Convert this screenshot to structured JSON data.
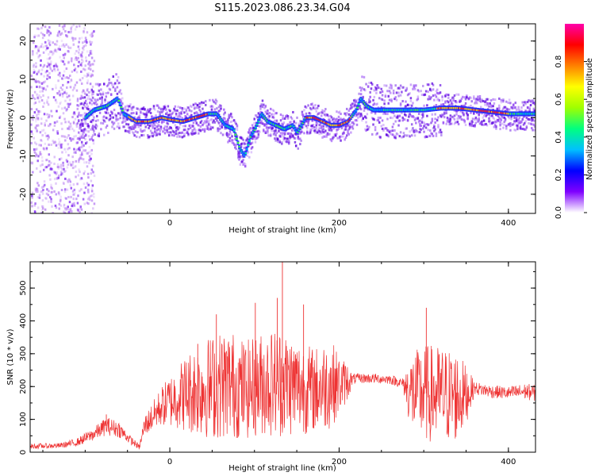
{
  "figure": {
    "title": "S115.2023.086.23.34.G04"
  },
  "colors": {
    "snr_line": "#ee3333",
    "ridge": "#ff1a1a",
    "axis": "#000000",
    "colormap": [
      "#ffffff",
      "#7f00ff",
      "#0000ff",
      "#00c0ff",
      "#00ff80",
      "#a0ff00",
      "#ffff00",
      "#ff8000",
      "#ff0000",
      "#ff00aa"
    ]
  },
  "chart_data": [
    {
      "type": "heatmap",
      "title": "S115.2023.086.23.34.G04",
      "xlabel": "Height of straight line (km)",
      "ylabel": "Frequency (Hz)",
      "xlim": [
        -165,
        432
      ],
      "ylim": [
        -25,
        24.5
      ],
      "x_ticks": [
        "0",
        "200",
        "400"
      ],
      "x_tick_values": [
        0,
        200,
        400
      ],
      "y_ticks": [
        "-20",
        "-10",
        "0",
        "10",
        "20"
      ],
      "y_tick_values": [
        -20,
        -10,
        0,
        10,
        20
      ],
      "colorbar": {
        "label": "Normalized spectral amplitude",
        "range": [
          0,
          1
        ],
        "ticks": [
          "0.0",
          "0.2",
          "0.4",
          "0.6",
          "0.8"
        ],
        "tick_values": [
          0,
          0.2,
          0.4,
          0.6,
          0.8
        ]
      },
      "ridge": {
        "x": [
          -110,
          -90,
          -75,
          -62,
          -55,
          -40,
          -25,
          -10,
          0,
          15,
          30,
          45,
          55,
          65,
          75,
          82,
          88,
          95,
          100,
          108,
          115,
          125,
          135,
          145,
          150,
          160,
          170,
          180,
          190,
          200,
          210,
          220,
          225,
          232,
          240,
          260,
          280,
          300,
          320,
          340,
          360,
          380,
          400,
          420,
          432
        ],
        "y": [
          -2,
          2,
          3,
          5,
          1,
          -1,
          -1,
          0,
          -0.5,
          -1,
          0,
          1,
          1,
          -2,
          -3,
          -8,
          -10,
          -5,
          -3,
          1,
          -1,
          -2,
          -3,
          -2,
          -4,
          0,
          0,
          -1,
          -2,
          -2,
          -1,
          2,
          5,
          3,
          2,
          2,
          2,
          2,
          2.5,
          2.5,
          2,
          1.5,
          1,
          1,
          1
        ]
      }
    },
    {
      "type": "line",
      "title": "",
      "xlabel": "Height of straight line (km)",
      "ylabel": "SNR (10 * v/v)",
      "xlim": [
        -165,
        432
      ],
      "ylim": [
        0,
        580
      ],
      "x_ticks": [
        "0",
        "200",
        "400"
      ],
      "x_tick_values": [
        0,
        200,
        400
      ],
      "y_ticks": [
        "0",
        "100",
        "200",
        "300",
        "400",
        "500"
      ],
      "y_tick_values": [
        0,
        100,
        200,
        300,
        400,
        500
      ],
      "series": [
        {
          "name": "",
          "envelope_x": [
            -165,
            -130,
            -110,
            -90,
            -75,
            -60,
            -50,
            -36,
            -30,
            -10,
            10,
            30,
            50,
            70,
            90,
            110,
            130,
            150,
            170,
            190,
            200,
            210,
            215,
            220,
            240,
            260,
            275,
            285,
            300,
            320,
            340,
            350,
            360,
            380,
            400,
            420,
            432
          ],
          "envelope_center": [
            18,
            20,
            30,
            55,
            80,
            70,
            45,
            15,
            80,
            140,
            170,
            190,
            200,
            210,
            190,
            210,
            215,
            200,
            190,
            210,
            205,
            215,
            220,
            225,
            225,
            222,
            210,
            180,
            180,
            175,
            170,
            175,
            195,
            185,
            180,
            185,
            180
          ],
          "envelope_amplitude": [
            8,
            8,
            12,
            20,
            28,
            25,
            15,
            8,
            30,
            60,
            100,
            140,
            160,
            170,
            150,
            160,
            170,
            150,
            130,
            140,
            90,
            60,
            20,
            15,
            15,
            15,
            15,
            120,
            150,
            150,
            140,
            90,
            20,
            20,
            20,
            25,
            25
          ],
          "peaks": [
            {
              "x": 133,
              "y": 580
            },
            {
              "x": 127,
              "y": 470
            },
            {
              "x": 101,
              "y": 455
            },
            {
              "x": 158,
              "y": 450
            },
            {
              "x": 303,
              "y": 440
            },
            {
              "x": 55,
              "y": 420
            },
            {
              "x": 33,
              "y": 330
            },
            {
              "x": -75,
              "y": 115
            }
          ]
        }
      ]
    }
  ]
}
